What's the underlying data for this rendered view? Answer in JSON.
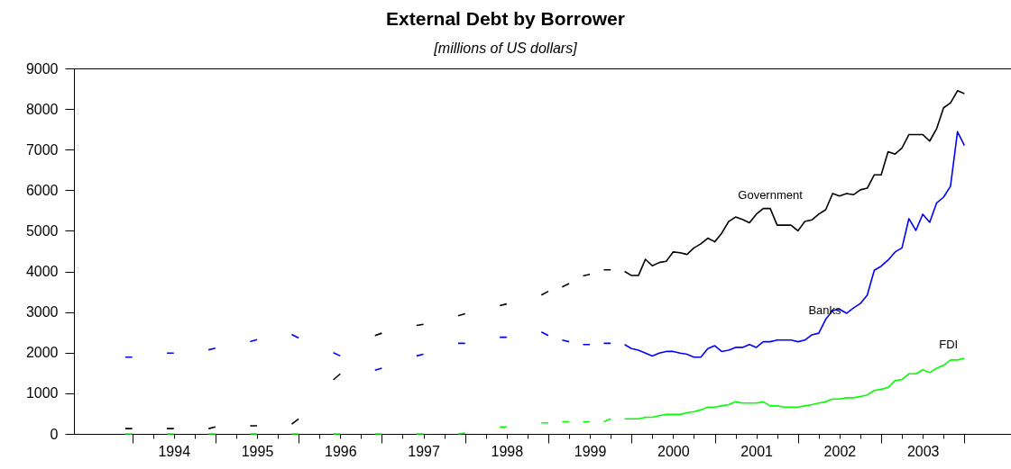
{
  "chart_data": {
    "type": "line",
    "title": "External Debt by Borrower",
    "subtitle": "[millions of US dollars]",
    "x": [
      1993.917,
      1994,
      1994.25,
      1994.417,
      1994.5,
      1994.75,
      1994.917,
      1995,
      1995.25,
      1995.417,
      1995.5,
      1995.75,
      1995.917,
      1996,
      1996.25,
      1996.417,
      1996.5,
      1996.75,
      1996.917,
      1997,
      1997.25,
      1997.417,
      1997.5,
      1997.75,
      1997.917,
      1998,
      1998.25,
      1998.417,
      1998.5,
      1998.75,
      1998.917,
      1999,
      1999.083,
      1999.167,
      1999.25,
      1999.333,
      1999.417,
      1999.5,
      1999.583,
      1999.667,
      1999.75,
      1999.833,
      1999.917,
      2000,
      2000.083,
      2000.167,
      2000.25,
      2000.333,
      2000.417,
      2000.5,
      2000.583,
      2000.667,
      2000.75,
      2000.833,
      2000.917,
      2001,
      2001.083,
      2001.167,
      2001.25,
      2001.333,
      2001.417,
      2001.5,
      2001.583,
      2001.667,
      2001.75,
      2001.833,
      2001.917,
      2002,
      2002.083,
      2002.167,
      2002.25,
      2002.333,
      2002.417,
      2002.5,
      2002.583,
      2002.667,
      2002.75,
      2002.833,
      2002.917,
      2003,
      2003.083,
      2003.167,
      2003.25,
      2003.333,
      2003.417,
      2003.5,
      2003.583,
      2003.667,
      2003.75,
      2003.833,
      2003.917,
      2004
    ],
    "series": [
      {
        "name": "Government",
        "color": "#000000",
        "values": [
          130,
          130,
          null,
          130,
          130,
          null,
          130,
          170,
          null,
          200,
          200,
          null,
          240,
          370,
          null,
          1330,
          1480,
          null,
          2420,
          2480,
          null,
          2670,
          2700,
          null,
          2910,
          2960,
          null,
          3160,
          3200,
          null,
          3420,
          3510,
          null,
          3620,
          3700,
          null,
          3890,
          3930,
          null,
          4040,
          4040,
          null,
          4000,
          3900,
          3900,
          4300,
          4140,
          4220,
          4250,
          4480,
          4460,
          4420,
          4580,
          4680,
          4820,
          4730,
          4940,
          5230,
          5340,
          5280,
          5200,
          5410,
          5550,
          5550,
          5140,
          5140,
          5140,
          5000,
          5230,
          5270,
          5410,
          5520,
          5920,
          5860,
          5920,
          5890,
          6010,
          6050,
          6380,
          6380,
          6950,
          6890,
          7040,
          7370,
          7370,
          7370,
          7210,
          7520,
          8030,
          8150,
          8450,
          8380
        ]
      },
      {
        "name": "Banks",
        "color": "#0000ff",
        "values": [
          1890,
          1890,
          null,
          1990,
          1990,
          null,
          2070,
          2110,
          null,
          2270,
          2320,
          null,
          2450,
          2360,
          null,
          2000,
          1920,
          null,
          1570,
          1620,
          null,
          1920,
          1960,
          null,
          2230,
          2230,
          null,
          2380,
          2380,
          null,
          2510,
          2420,
          null,
          2310,
          2270,
          null,
          2200,
          2200,
          null,
          2230,
          2230,
          null,
          2200,
          2100,
          2060,
          1990,
          1920,
          1990,
          2030,
          2030,
          1990,
          1960,
          1890,
          1890,
          2100,
          2170,
          2030,
          2060,
          2130,
          2130,
          2200,
          2130,
          2270,
          2270,
          2310,
          2310,
          2310,
          2270,
          2310,
          2440,
          2480,
          2820,
          3040,
          3070,
          2970,
          3100,
          3210,
          3420,
          4030,
          4130,
          4280,
          4480,
          4580,
          5300,
          5010,
          5410,
          5210,
          5690,
          5830,
          6100,
          7440,
          7100
        ]
      },
      {
        "name": "FDI",
        "color": "#00ff00",
        "values": [
          0,
          0,
          null,
          0,
          0,
          null,
          0,
          0,
          null,
          0,
          0,
          null,
          0,
          0,
          null,
          0,
          0,
          null,
          0,
          0,
          null,
          0,
          0,
          null,
          0,
          20,
          null,
          170,
          170,
          null,
          270,
          270,
          null,
          300,
          300,
          null,
          300,
          300,
          null,
          300,
          370,
          null,
          370,
          370,
          370,
          410,
          410,
          450,
          480,
          480,
          480,
          520,
          550,
          590,
          660,
          660,
          690,
          720,
          790,
          760,
          760,
          760,
          790,
          690,
          690,
          660,
          660,
          660,
          690,
          720,
          760,
          790,
          860,
          860,
          890,
          890,
          920,
          960,
          1070,
          1100,
          1140,
          1310,
          1340,
          1480,
          1480,
          1580,
          1510,
          1620,
          1690,
          1820,
          1820,
          1860
        ]
      }
    ],
    "xlim": [
      1993.3,
      2004.56
    ],
    "xticks": [
      {
        "value": 1994,
        "label": null
      },
      {
        "value": 1994.25,
        "label": null
      },
      {
        "value": 1994.5,
        "label": "1994"
      },
      {
        "value": 1994.75,
        "label": null
      },
      {
        "value": 1995,
        "label": null
      },
      {
        "value": 1995.25,
        "label": null
      },
      {
        "value": 1995.5,
        "label": "1995"
      },
      {
        "value": 1995.75,
        "label": null
      },
      {
        "value": 1996,
        "label": null
      },
      {
        "value": 1996.25,
        "label": null
      },
      {
        "value": 1996.5,
        "label": "1996"
      },
      {
        "value": 1996.75,
        "label": null
      },
      {
        "value": 1997,
        "label": null
      },
      {
        "value": 1997.25,
        "label": null
      },
      {
        "value": 1997.5,
        "label": "1997"
      },
      {
        "value": 1997.75,
        "label": null
      },
      {
        "value": 1998,
        "label": null
      },
      {
        "value": 1998.25,
        "label": null
      },
      {
        "value": 1998.5,
        "label": "1998"
      },
      {
        "value": 1998.75,
        "label": null
      },
      {
        "value": 1999,
        "label": null
      },
      {
        "value": 1999.25,
        "label": null
      },
      {
        "value": 1999.5,
        "label": "1999"
      },
      {
        "value": 1999.75,
        "label": null
      },
      {
        "value": 2000,
        "label": null
      },
      {
        "value": 2000.25,
        "label": null
      },
      {
        "value": 2000.5,
        "label": "2000"
      },
      {
        "value": 2000.75,
        "label": null
      },
      {
        "value": 2001,
        "label": null
      },
      {
        "value": 2001.25,
        "label": null
      },
      {
        "value": 2001.5,
        "label": "2001"
      },
      {
        "value": 2001.75,
        "label": null
      },
      {
        "value": 2002,
        "label": null
      },
      {
        "value": 2002.25,
        "label": null
      },
      {
        "value": 2002.5,
        "label": "2002"
      },
      {
        "value": 2002.75,
        "label": null
      },
      {
        "value": 2003,
        "label": null
      },
      {
        "value": 2003.25,
        "label": null
      },
      {
        "value": 2003.5,
        "label": "2003"
      },
      {
        "value": 2003.75,
        "label": null
      },
      {
        "value": 2004,
        "label": null
      }
    ],
    "ylim": [
      0,
      9000
    ],
    "yticks": [
      0,
      1000,
      2000,
      3000,
      4000,
      5000,
      6000,
      7000,
      8000,
      9000
    ],
    "marker": "none",
    "line_style": "solid"
  }
}
